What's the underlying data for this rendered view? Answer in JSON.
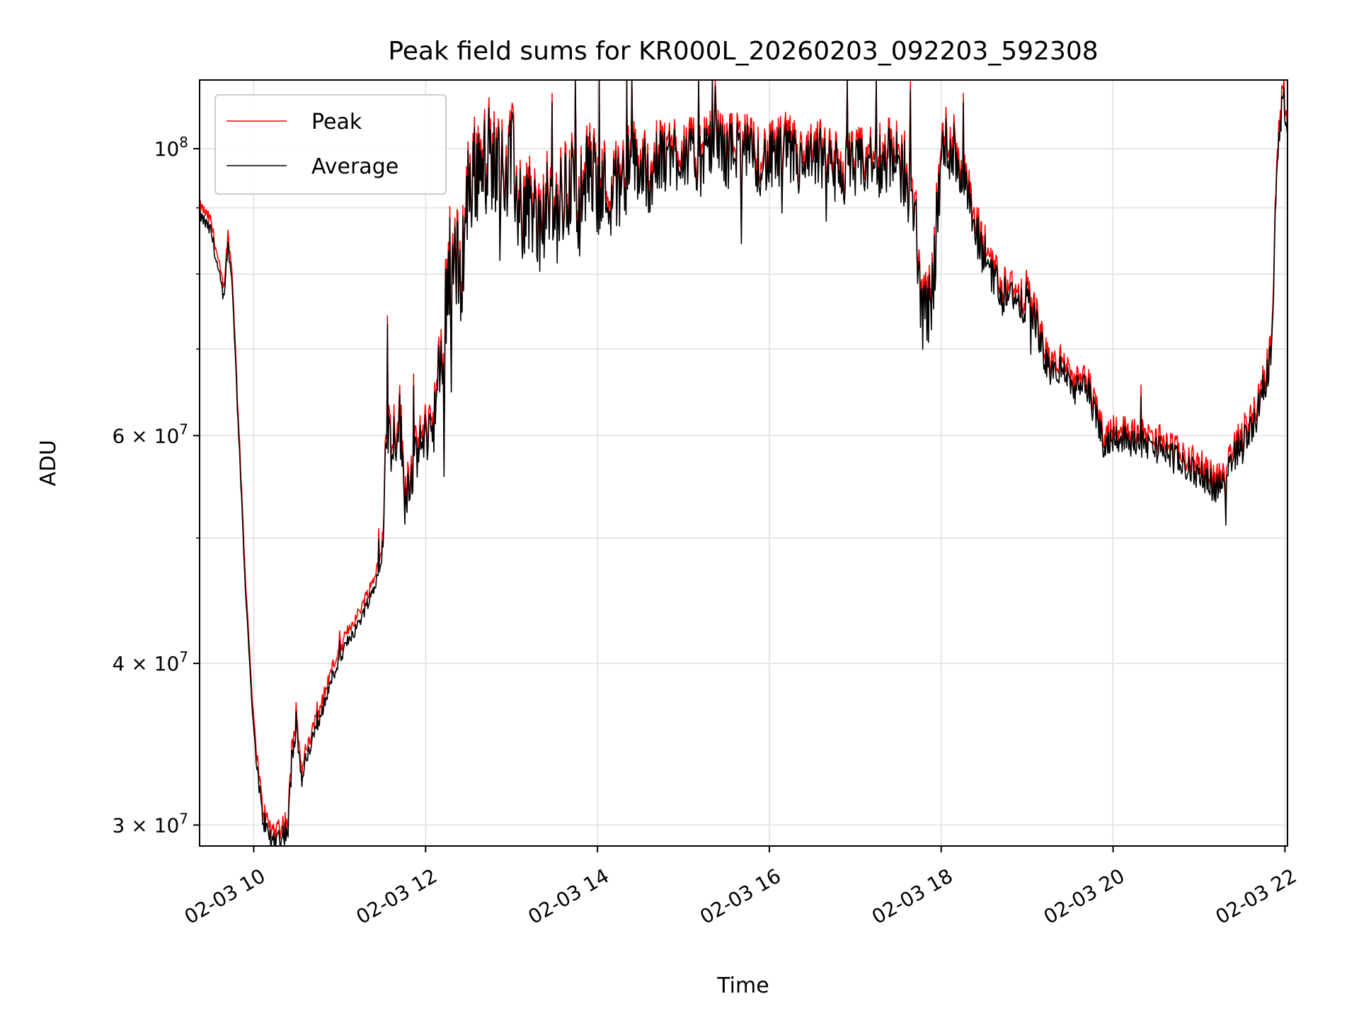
{
  "chart_data": {
    "type": "line",
    "title": "Peak field sums for KR000L_20260203_092203_592308",
    "xlabel": "Time",
    "ylabel": "ADU",
    "yscale": "log",
    "xlim": [
      9.37,
      22.03
    ],
    "ylim": [
      28900000,
      113000000
    ],
    "x_ticks": [
      {
        "value": 10,
        "label": "02-03 10"
      },
      {
        "value": 12,
        "label": "02-03 12"
      },
      {
        "value": 14,
        "label": "02-03 14"
      },
      {
        "value": 16,
        "label": "02-03 16"
      },
      {
        "value": 18,
        "label": "02-03 18"
      },
      {
        "value": 20,
        "label": "02-03 20"
      },
      {
        "value": 22,
        "label": "02-03 22"
      }
    ],
    "y_ticks": [
      {
        "value": 30000000,
        "mantissa": "3",
        "exponent": "7"
      },
      {
        "value": 40000000,
        "mantissa": "4",
        "exponent": "7"
      },
      {
        "value": 60000000,
        "mantissa": "6",
        "exponent": "7"
      },
      {
        "value": 100000000,
        "mantissa": "",
        "exponent": "8"
      }
    ],
    "y_minor_ticks": [
      50000000,
      70000000,
      80000000,
      90000000
    ],
    "grid": true,
    "legend_position": "top-left",
    "series": [
      {
        "name": "Peak",
        "color": "#ff0000",
        "x": [
          9.37,
          9.5,
          9.6,
          9.65,
          9.7,
          9.75,
          9.8,
          9.9,
          10.0,
          10.1,
          10.2,
          10.3,
          10.4,
          10.45,
          10.5,
          10.55,
          10.6,
          10.7,
          10.8,
          10.9,
          11.0,
          11.1,
          11.2,
          11.3,
          11.4,
          11.5,
          11.55,
          11.6,
          11.7,
          11.75,
          11.8,
          11.9,
          12.0,
          12.1,
          12.2,
          12.25,
          12.3,
          12.4,
          12.5,
          12.6,
          12.7,
          12.8,
          12.9,
          13.0,
          13.1,
          13.2,
          13.3,
          13.4,
          13.5,
          13.6,
          13.7,
          13.8,
          13.9,
          14.0,
          14.2,
          14.4,
          14.6,
          14.8,
          15.0,
          15.2,
          15.4,
          15.5,
          15.6,
          15.8,
          16.0,
          16.2,
          16.4,
          16.6,
          16.8,
          17.0,
          17.2,
          17.4,
          17.6,
          17.7,
          17.75,
          17.8,
          17.9,
          18.0,
          18.1,
          18.2,
          18.3,
          18.4,
          18.5,
          18.6,
          18.7,
          18.8,
          18.9,
          19.0,
          19.1,
          19.2,
          19.3,
          19.4,
          19.5,
          19.6,
          19.7,
          19.8,
          19.9,
          20.0,
          20.2,
          20.4,
          20.6,
          20.8,
          21.0,
          21.1,
          21.2,
          21.3,
          21.4,
          21.5,
          21.6,
          21.7,
          21.8,
          21.85,
          21.9,
          21.95,
          22.0,
          22.03
        ],
        "values": [
          90500000,
          88000000,
          81000000,
          78000000,
          86000000,
          80000000,
          67000000,
          47000000,
          36000000,
          31000000,
          29700000,
          29900000,
          30300000,
          35000000,
          37000000,
          33000000,
          34000000,
          35800000,
          37500000,
          39500000,
          41000000,
          42500000,
          43500000,
          45000000,
          46500000,
          50000000,
          63000000,
          60000000,
          63000000,
          55000000,
          56000000,
          59000000,
          61000000,
          63000000,
          70000000,
          81000000,
          85000000,
          80000000,
          95000000,
          98000000,
          102000000,
          99000000,
          97000000,
          100000000,
          90000000,
          93000000,
          88000000,
          91000000,
          90000000,
          93000000,
          96000000,
          92000000,
          98000000,
          95000000,
          94000000,
          99000000,
          97000000,
          100000000,
          101000000,
          99000000,
          103000000,
          100000000,
          102000000,
          100000000,
          99000000,
          101000000,
          98000000,
          100000000,
          97000000,
          98000000,
          99000000,
          100000000,
          97000000,
          88000000,
          80000000,
          75000000,
          79000000,
          100000000,
          103000000,
          99000000,
          94000000,
          87000000,
          84000000,
          82000000,
          78000000,
          80000000,
          76000000,
          78000000,
          75000000,
          70000000,
          68000000,
          69000000,
          67000000,
          66000000,
          66500000,
          63000000,
          60000000,
          61000000,
          60500000,
          60000000,
          59500000,
          58000000,
          57000000,
          56500000,
          55500000,
          56000000,
          59000000,
          60000000,
          62000000,
          64000000,
          68000000,
          72000000,
          97000000,
          108000000,
          111000000,
          103000000
        ],
        "volatility": [
          0.004,
          0.005,
          0.005,
          0.005,
          0.005,
          0.004,
          0.003,
          0.003,
          0.004,
          0.008,
          0.01,
          0.01,
          0.01,
          0.012,
          0.012,
          0.01,
          0.008,
          0.006,
          0.006,
          0.006,
          0.005,
          0.005,
          0.005,
          0.005,
          0.005,
          0.008,
          0.025,
          0.025,
          0.025,
          0.025,
          0.02,
          0.02,
          0.02,
          0.025,
          0.04,
          0.05,
          0.05,
          0.045,
          0.045,
          0.04,
          0.04,
          0.04,
          0.04,
          0.04,
          0.04,
          0.04,
          0.04,
          0.04,
          0.04,
          0.04,
          0.04,
          0.04,
          0.035,
          0.035,
          0.035,
          0.03,
          0.03,
          0.03,
          0.025,
          0.025,
          0.025,
          0.025,
          0.025,
          0.025,
          0.025,
          0.025,
          0.025,
          0.025,
          0.025,
          0.025,
          0.025,
          0.025,
          0.03,
          0.035,
          0.035,
          0.03,
          0.03,
          0.03,
          0.03,
          0.025,
          0.02,
          0.02,
          0.02,
          0.02,
          0.015,
          0.015,
          0.015,
          0.015,
          0.015,
          0.012,
          0.012,
          0.012,
          0.012,
          0.012,
          0.012,
          0.012,
          0.012,
          0.012,
          0.012,
          0.012,
          0.012,
          0.012,
          0.012,
          0.012,
          0.012,
          0.012,
          0.012,
          0.015,
          0.015,
          0.015,
          0.015,
          0.01,
          0.01,
          0.015,
          0.015,
          0.012
        ]
      },
      {
        "name": "Average",
        "color": "#000000",
        "offset_factor": 0.985
      }
    ]
  }
}
